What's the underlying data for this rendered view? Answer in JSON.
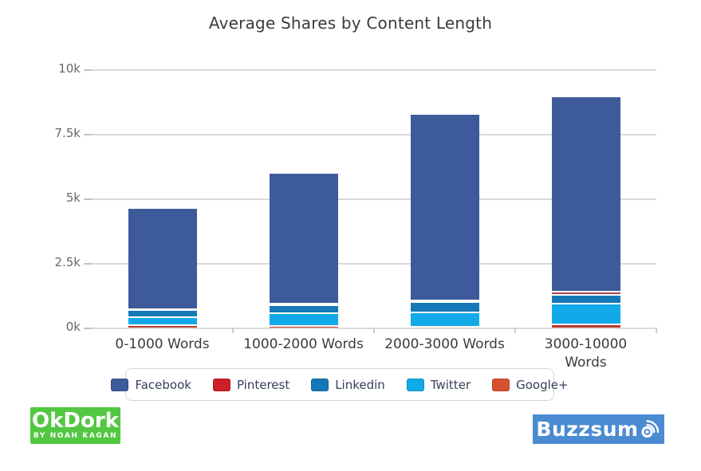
{
  "title": "Average Shares by Content Length",
  "chart_data": {
    "type": "bar",
    "stacked": true,
    "title": "Average Shares by Content Length",
    "xlabel": "",
    "ylabel": "",
    "ylim": [
      0,
      10000
    ],
    "grid": true,
    "legend_position": "bottom",
    "categories": [
      "0-1000 Words",
      "1000-2000 Words",
      "2000-3000 Words",
      "3000-10000 Words"
    ],
    "y_ticks": [
      {
        "value": 0,
        "label": "0k"
      },
      {
        "value": 2500,
        "label": "2.5k"
      },
      {
        "value": 5000,
        "label": "5k"
      },
      {
        "value": 7500,
        "label": "7.5k"
      },
      {
        "value": 10000,
        "label": "10k"
      }
    ],
    "series": [
      {
        "name": "Facebook",
        "color": "#3d5a9a",
        "legend_color": "#3d5a9a",
        "values": [
          3850,
          5000,
          7175,
          7500
        ]
      },
      {
        "name": "Pinterest",
        "color": "#a8444f",
        "legend_color": "#cb2026",
        "values": [
          25,
          35,
          40,
          125
        ]
      },
      {
        "name": "Linkedin",
        "color": "#1479b6",
        "legend_color": "#1479b6",
        "values": [
          280,
          310,
          400,
          340
        ]
      },
      {
        "name": "Twitter",
        "color": "#12a9e8",
        "legend_color": "#12a9e8",
        "values": [
          310,
          520,
          560,
          800
        ]
      },
      {
        "name": "Google+",
        "color": "#c0392f",
        "legend_color": "#d8512f",
        "values": [
          120,
          80,
          70,
          150
        ]
      }
    ],
    "stack_order_bottom_to_top": [
      "Google+",
      "Twitter",
      "Linkedin",
      "Pinterest",
      "Facebook"
    ],
    "totals": [
      4585,
      5945,
      8245,
      8915
    ]
  },
  "footer": {
    "okdork": {
      "line1": "OkDork",
      "line2": "BY NOAH KAGAN",
      "bg": "#52c742"
    },
    "buzzsumo": {
      "text_before_icon": "Buzzsum",
      "name": "Buzzsumo",
      "bg": "#4a8bd2"
    }
  }
}
